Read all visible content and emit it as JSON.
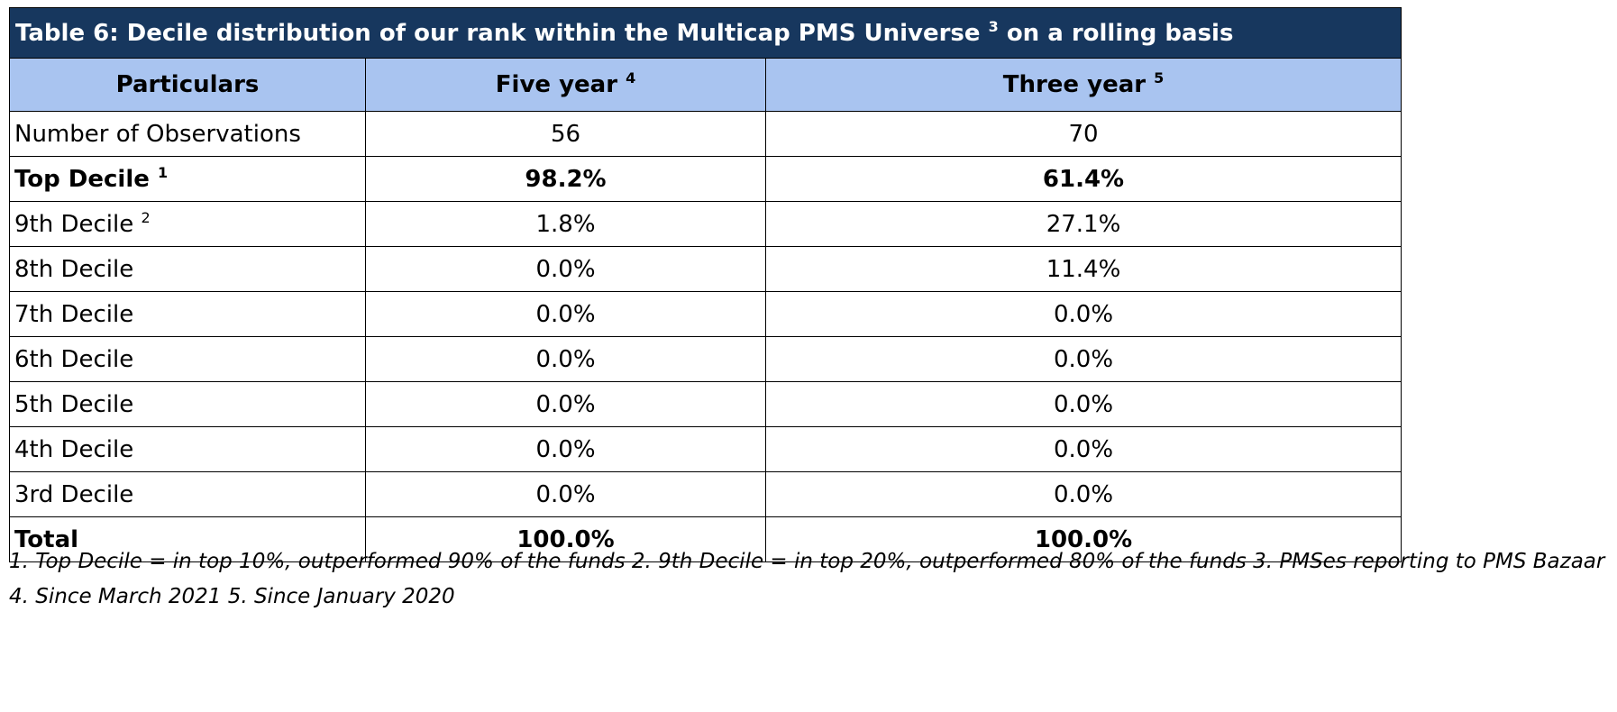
{
  "table": {
    "title": "Table 6: Decile distribution of our rank within the Multicap PMS Universe",
    "title_sup": "3",
    "title_suffix": "on a rolling basis",
    "headers": [
      {
        "label": "Particulars",
        "sup": ""
      },
      {
        "label": "Five year",
        "sup": "4"
      },
      {
        "label": "Three year",
        "sup": "5"
      }
    ],
    "rows": [
      {
        "label": "Number of Observations",
        "sup": "",
        "five_year": "56",
        "three_year": "70",
        "bold": false
      },
      {
        "label": "Top Decile",
        "sup": "1",
        "five_year": "98.2%",
        "three_year": "61.4%",
        "bold": true
      },
      {
        "label": "9th Decile",
        "sup": "2",
        "five_year": "1.8%",
        "three_year": "27.1%",
        "bold": false
      },
      {
        "label": "8th Decile",
        "sup": "",
        "five_year": "0.0%",
        "three_year": "11.4%",
        "bold": false
      },
      {
        "label": "7th Decile",
        "sup": "",
        "five_year": "0.0%",
        "three_year": "0.0%",
        "bold": false
      },
      {
        "label": "6th Decile",
        "sup": "",
        "five_year": "0.0%",
        "three_year": "0.0%",
        "bold": false
      },
      {
        "label": "5th Decile",
        "sup": "",
        "five_year": "0.0%",
        "three_year": "0.0%",
        "bold": false
      },
      {
        "label": "4th Decile",
        "sup": "",
        "five_year": "0.0%",
        "three_year": "0.0%",
        "bold": false
      },
      {
        "label": "3rd Decile",
        "sup": "",
        "five_year": "0.0%",
        "three_year": "0.0%",
        "bold": false
      },
      {
        "label": "Total",
        "sup": "",
        "five_year": "100.0%",
        "three_year": "100.0%",
        "bold": true
      }
    ]
  },
  "footnote": "1. Top Decile = in top 10%, outperformed 90% of the funds 2. 9th Decile = in top 20%, outperformed 80% of the funds 3. PMSes reporting to PMS Bazaar 4. Since March 2021 5. Since January 2020",
  "colors": {
    "title_bg": "#17375e",
    "header_bg": "#a9c4f0"
  }
}
